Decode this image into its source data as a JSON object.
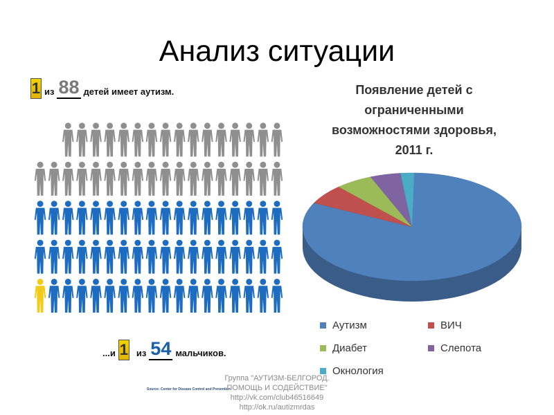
{
  "slide": {
    "title": "Анализ ситуации"
  },
  "infographic": {
    "line1": {
      "one": "1",
      "from": "из",
      "number": "88",
      "rest": "детей имеет аутизм."
    },
    "line2": {
      "prefix": "...и",
      "one": "1",
      "from": "из",
      "number": "54",
      "rest": "мальчиков."
    },
    "source": "Source: Center for Disease Control and Prevention",
    "grid": {
      "rows": 5,
      "first_row_count": 16,
      "row_count": 18,
      "grey_rows": 2,
      "highlight": "yellow figure in last row, first column"
    },
    "colors": {
      "grey": "#8f8f8f",
      "blue": "#1e6cc0",
      "highlight": "#f2cc1a"
    }
  },
  "chart_data": {
    "type": "pie",
    "title": "Появление детей с ограниченными возможностями здоровья, 2011 г.",
    "title_lines": [
      "Появление детей с",
      "ограниченными",
      "возможностями здоровья,",
      "2011 г."
    ],
    "three_d": true,
    "legend_placement": "bottom",
    "series": [
      {
        "name": "Аутизм",
        "value": 82,
        "color": "#4f81bd"
      },
      {
        "name": "ВИЧ",
        "value": 6,
        "color": "#c0504d"
      },
      {
        "name": "Диабет",
        "value": 5.5,
        "color": "#9bbb59"
      },
      {
        "name": "Слепота",
        "value": 4.5,
        "color": "#8064a2"
      },
      {
        "name": "Окнология",
        "value": 2,
        "color": "#4bacc6"
      }
    ]
  },
  "watermark": {
    "lines": [
      "Группа \"АУТИЗМ-БЕЛГОРОД.",
      "ПОМОЩЬ И СОДЕЙСТВИЕ\"",
      "http://vk.com/club46516649",
      "http://ok.ru/autizmrdas"
    ]
  }
}
